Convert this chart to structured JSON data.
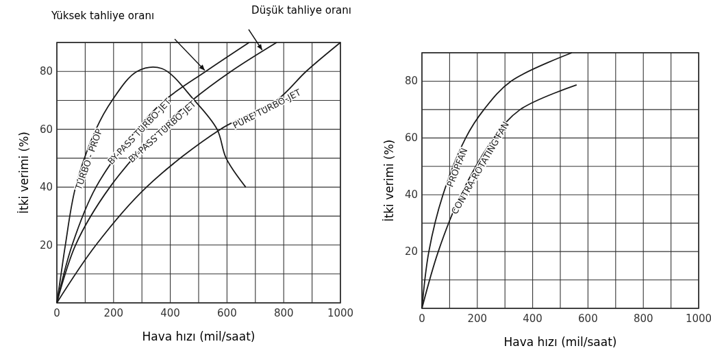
{
  "chart_data": [
    {
      "type": "line",
      "xlabel": "Hava hızı (mil/saat)",
      "ylabel": "İtki verimi (%)",
      "xlim": [
        0,
        1000
      ],
      "ylim": [
        0,
        90
      ],
      "xticks": [
        0,
        200,
        400,
        600,
        800,
        1000
      ],
      "yticks": [
        20,
        40,
        60,
        80
      ],
      "grid": true,
      "marker": "none",
      "line_style": "solid",
      "annotations": [
        "Yüksek tahliye oranı",
        "Düşük tahliye oranı"
      ],
      "series": [
        {
          "name": "TURBO - PROP",
          "color": "#1a1a1a",
          "x": [
            0,
            15,
            30,
            66,
            138,
            195,
            283,
            370,
            485,
            565,
            597,
            666
          ],
          "values": [
            0,
            10,
            20,
            40,
            60,
            70,
            80,
            81,
            70,
            60,
            50,
            40
          ]
        },
        {
          "name": "BY-PASS TURBO-JET",
          "color": "#1a1a1a",
          "x": [
            0,
            54,
            138,
            283,
            380,
            525,
            678
          ],
          "values": [
            0,
            20,
            40,
            60,
            70,
            80,
            90
          ]
        },
        {
          "name": "BY-PASS TURBO-JET",
          "color": "#1a1a1a",
          "x": [
            0,
            66,
            187,
            364,
            477,
            614,
            775
          ],
          "values": [
            0,
            20,
            40,
            60,
            70,
            80,
            90
          ]
        },
        {
          "name": "PURE TURBO-JET",
          "color": "#1a1a1a",
          "x": [
            0,
            138,
            316,
            577,
            775,
            879,
            1000
          ],
          "values": [
            0,
            20,
            40,
            60,
            70,
            80,
            90
          ]
        }
      ]
    },
    {
      "type": "line",
      "xlabel": "Hava hızı (mil/saat)",
      "ylabel": "İtki verimi (%)",
      "xlim": [
        0,
        1000
      ],
      "ylim": [
        0,
        90
      ],
      "xticks": [
        0,
        200,
        400,
        600,
        800,
        1000
      ],
      "yticks": [
        20,
        40,
        60,
        80
      ],
      "grid": true,
      "marker": "none",
      "line_style": "solid",
      "series": [
        {
          "name": "PROPFAN",
          "color": "#1a1a1a",
          "x": [
            0,
            25,
            76,
            158,
            224,
            322,
            542
          ],
          "values": [
            0,
            20,
            40,
            60,
            70,
            80,
            90
          ]
        },
        {
          "name": "CONTRA-ROTATING FAN",
          "color": "#1a1a1a",
          "x": [
            0,
            59,
            141,
            260,
            355,
            559
          ],
          "values": [
            0,
            20,
            40,
            60,
            70,
            78.7
          ]
        }
      ]
    }
  ]
}
